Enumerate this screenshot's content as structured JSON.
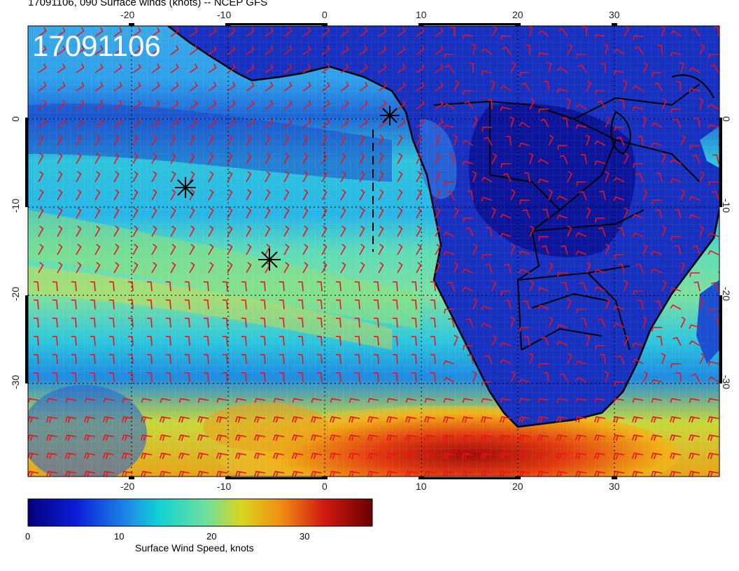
{
  "title": "17091106, 090 Surface winds (knots) -- NCEP GFS",
  "stamp": "17091106",
  "map": {
    "region": "South Atlantic / Southern Africa",
    "lon_range": [
      -31,
      41
    ],
    "lat_range": [
      -41,
      10
    ],
    "lon_ticks": [
      "-20",
      "-10",
      "0",
      "10",
      "20",
      "30"
    ],
    "lat_ticks": [
      "0",
      "-10",
      "-20",
      "-30"
    ],
    "barb_color": "#e8141b",
    "marker_names": [
      "storm-marker-1",
      "storm-marker-2",
      "storm-marker-3"
    ]
  },
  "colorbar": {
    "label": "Surface Wind Speed, knots",
    "ticks": [
      "0",
      "10",
      "20",
      "30"
    ],
    "range": [
      0,
      37
    ],
    "colors": [
      "#05007a",
      "#0a1ed8",
      "#1c82e8",
      "#10d2d6",
      "#6fe09a",
      "#d9d61d",
      "#f08a12",
      "#d01a10",
      "#6a0000"
    ]
  }
}
